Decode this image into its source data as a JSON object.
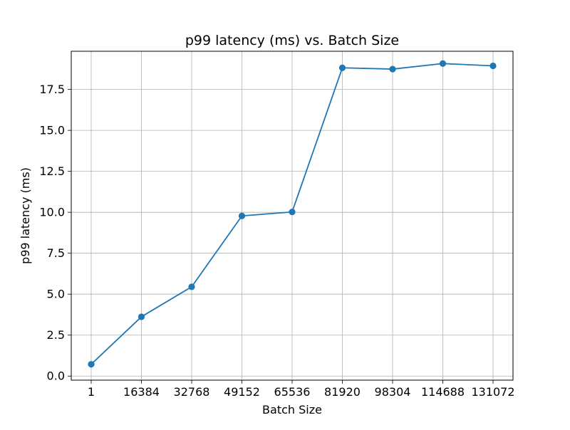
{
  "chart_data": {
    "type": "line",
    "title": "p99 latency (ms) vs. Batch Size",
    "xlabel": "Batch Size",
    "ylabel": "p99 latency (ms)",
    "categories": [
      "1",
      "16384",
      "32768",
      "49152",
      "65536",
      "81920",
      "98304",
      "114688",
      "131072"
    ],
    "series": [
      {
        "values": [
          0.72,
          3.62,
          5.45,
          9.78,
          10.02,
          18.82,
          18.74,
          19.08,
          18.94
        ],
        "color": "#1f77b4",
        "marker": "circle"
      }
    ],
    "yticks": [
      "0.0",
      "2.5",
      "5.0",
      "7.5",
      "10.0",
      "12.5",
      "15.0",
      "17.5"
    ],
    "ylim": [
      -0.25,
      19.83
    ],
    "grid": true,
    "legend": "none"
  }
}
